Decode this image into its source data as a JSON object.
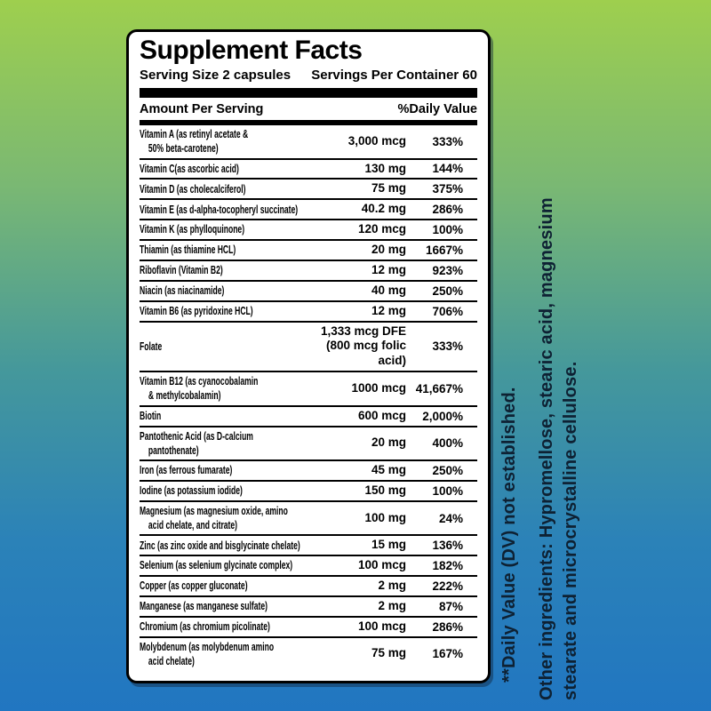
{
  "colors": {
    "background_top": "#9ecf4e",
    "background_middle": "#45989b",
    "background_bottom": "#2176c1",
    "panel_background": "#ffffff",
    "panel_border": "#000000",
    "side_text": "#0e2133"
  },
  "panel": {
    "title": "Supplement Facts",
    "serving_size": "Serving Size 2 capsules",
    "servings_per_container": "Servings Per Container 60",
    "column_headers": {
      "left": "Amount Per Serving",
      "right": "%Daily Value"
    },
    "rows": [
      {
        "name": "Vitamin A (as retinyl acetate &\n50% beta-carotene)",
        "amount": "3,000 mcg",
        "dv": "333%"
      },
      {
        "name": "Vitamin C(as ascorbic acid)",
        "amount": "130 mg",
        "dv": "144%"
      },
      {
        "name": "Vitamin D (as cholecalciferol)",
        "amount": "75 mg",
        "dv": "375%"
      },
      {
        "name": "Vitamin E (as d-alpha-tocopheryl succinate)",
        "amount": "40.2 mg",
        "dv": "286%"
      },
      {
        "name": "Vitamin K (as phylloquinone)",
        "amount": "120 mcg",
        "dv": "100%"
      },
      {
        "name": "Thiamin (as thiamine HCL)",
        "amount": "20 mg",
        "dv": "1667%"
      },
      {
        "name": "Riboflavin (Vitamin B2)",
        "amount": "12 mg",
        "dv": "923%"
      },
      {
        "name": "Niacin (as niacinamide)",
        "amount": "40 mg",
        "dv": "250%"
      },
      {
        "name": "Vitamin B6 (as pyridoxine HCL)",
        "amount": "12 mg",
        "dv": "706%"
      },
      {
        "name": "Folate",
        "amount": "1,333 mcg DFE\n(800 mcg folic acid)",
        "dv": "333%"
      },
      {
        "name": "Vitamin B12 (as cyanocobalamin\n& methylcobalamin)",
        "amount": "1000 mcg",
        "dv": "41,667%"
      },
      {
        "name": "Biotin",
        "amount": "600 mcg",
        "dv": "2,000%"
      },
      {
        "name": "Pantothenic Acid (as D-calcium\npantothenate)",
        "amount": "20 mg",
        "dv": "400%"
      },
      {
        "name": "Iron (as ferrous fumarate)",
        "amount": "45 mg",
        "dv": "250%"
      },
      {
        "name": "Iodine (as potassium iodide)",
        "amount": "150 mg",
        "dv": "100%"
      },
      {
        "name": "Magnesium (as magnesium oxide, amino\nacid chelate, and citrate)",
        "amount": "100 mg",
        "dv": "24%"
      },
      {
        "name": "Zinc (as zinc oxide and bisglycinate chelate)",
        "amount": "15 mg",
        "dv": "136%"
      },
      {
        "name": "Selenium (as selenium glycinate complex)",
        "amount": "100 mcg",
        "dv": "182%"
      },
      {
        "name": "Copper (as copper gluconate)",
        "amount": "2 mg",
        "dv": "222%"
      },
      {
        "name": "Manganese (as manganese sulfate)",
        "amount": "2 mg",
        "dv": "87%"
      },
      {
        "name": "Chromium (as chromium picolinate)",
        "amount": "100 mcg",
        "dv": "286%"
      },
      {
        "name": "Molybdenum (as molybdenum amino\nacid chelate)",
        "amount": "75 mg",
        "dv": "167%"
      }
    ]
  },
  "side_notes": {
    "daily_value_note": "**Daily Value (DV) not established.",
    "other_ingredients": "Other ingredients: Hypromellose, stearic acid, magnesium\nstearate and microcrystalline cellulose."
  }
}
